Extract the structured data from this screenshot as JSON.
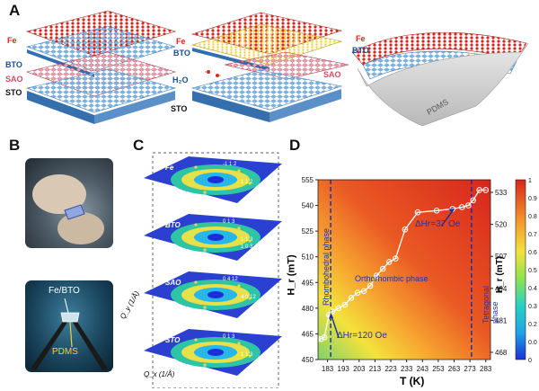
{
  "panels": {
    "a": "A",
    "b": "B",
    "c": "C",
    "d": "D"
  },
  "panelA": {
    "fe": "Fe",
    "bto": "BTO",
    "sao": "SAO",
    "sto": "STO",
    "h2o": "H₂O",
    "pdms": "PDMS"
  },
  "panelB": {
    "fe_bto": "Fe/BTO",
    "pdms": "PDMS"
  },
  "panelC": {
    "layers": [
      {
        "name": "Fe",
        "spot1": "-1 1 2",
        "spot2": "1 1 2"
      },
      {
        "name": "BTO",
        "spot1": "0 1 3",
        "spot2": "1 1 3",
        "spot3": "1 0 3"
      },
      {
        "name": "SAO",
        "spot1": "0 4 12",
        "spot2": "4 0 12"
      },
      {
        "name": "STO",
        "spot1": "0 1 3",
        "spot2": "1 1 3"
      }
    ],
    "axis_y": "Q_y (1/Å)",
    "axis_x": "Q_x (1/Å)"
  },
  "chart_data": {
    "type": "heatmap",
    "xlabel": "T (K)",
    "ylabel": "H_r (mT)",
    "right_label": "H_r (mT)",
    "x_ticks": [
      "183",
      "193",
      "203",
      "213",
      "223",
      "233",
      "243",
      "253",
      "263",
      "273",
      "283"
    ],
    "y_ticks_left": [
      "450",
      "465",
      "480",
      "495",
      "510",
      "525",
      "540",
      "555"
    ],
    "y_ticks_right": [
      "468",
      "481",
      "494",
      "507",
      "520",
      "533"
    ],
    "colorbar_ticks": [
      "1",
      "0.9",
      "0.8",
      "0.7",
      "0.6",
      "0.5",
      "0.4",
      "0.3",
      "0.2",
      "0.09",
      "0"
    ],
    "xlim": [
      177,
      286
    ],
    "ylim": [
      450,
      555
    ],
    "series": [
      {
        "x": [
          177,
          179,
          181,
          184,
          186,
          190,
          194,
          198,
          202,
          206,
          210,
          214,
          218,
          222,
          226,
          232,
          240,
          252,
          262,
          268,
          272,
          275,
          279,
          283
        ],
        "y": [
          462,
          462,
          463,
          476,
          478,
          480,
          482,
          486,
          489,
          490,
          493,
          499,
          503,
          507,
          509,
          526,
          536,
          537,
          538,
          539,
          540,
          543,
          549,
          549
        ]
      }
    ],
    "annotations": {
      "rhombo": "Rhombohedral phase",
      "ortho": "Orthorhombic phase",
      "tetra": "Tetragonal phase",
      "dhr1": "ΔHr=120 Oe",
      "dhr2": "ΔHr=37 Oe"
    },
    "phase_lines_T": [
      185,
      274
    ]
  }
}
